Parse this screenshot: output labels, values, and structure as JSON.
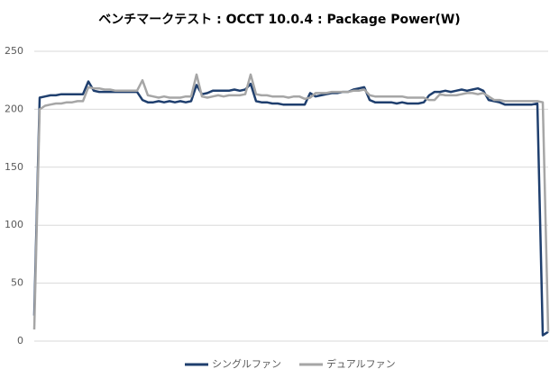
{
  "chart_data": {
    "type": "line",
    "title": "ベンチマークテスト : OCCT 10.0.4 : Package Power(W)",
    "ylim": [
      0,
      250
    ],
    "yticks": [
      0,
      50,
      100,
      150,
      200,
      250
    ],
    "grid": true,
    "legend": "bottom",
    "series": [
      {
        "name": "シングルファン",
        "color": "#1f3f6e",
        "values": [
          22,
          210,
          211,
          212,
          212,
          213,
          213,
          213,
          213,
          213,
          224,
          216,
          215,
          215,
          215,
          215,
          215,
          215,
          215,
          215,
          208,
          206,
          206,
          207,
          206,
          207,
          206,
          207,
          206,
          207,
          221,
          213,
          214,
          216,
          216,
          216,
          216,
          217,
          216,
          217,
          222,
          207,
          206,
          206,
          205,
          205,
          204,
          204,
          204,
          204,
          204,
          214,
          211,
          212,
          213,
          214,
          214,
          215,
          215,
          217,
          218,
          219,
          208,
          206,
          206,
          206,
          206,
          205,
          206,
          205,
          205,
          205,
          206,
          212,
          215,
          215,
          216,
          215,
          216,
          217,
          216,
          217,
          218,
          216,
          208,
          207,
          206,
          204,
          204,
          204,
          204,
          204,
          204,
          205,
          5,
          8
        ]
      },
      {
        "name": "デュアルファン",
        "color": "#a6a6a6",
        "values": [
          10,
          200,
          203,
          204,
          205,
          205,
          206,
          206,
          207,
          207,
          219,
          218,
          218,
          217,
          217,
          216,
          216,
          216,
          216,
          216,
          225,
          212,
          211,
          210,
          211,
          210,
          210,
          210,
          211,
          211,
          230,
          211,
          210,
          211,
          212,
          211,
          212,
          212,
          212,
          213,
          230,
          213,
          212,
          212,
          211,
          211,
          211,
          210,
          211,
          211,
          209,
          210,
          214,
          214,
          214,
          215,
          215,
          215,
          215,
          216,
          216,
          217,
          212,
          211,
          211,
          211,
          211,
          211,
          211,
          210,
          210,
          210,
          210,
          208,
          208,
          213,
          212,
          212,
          212,
          213,
          214,
          214,
          213,
          214,
          211,
          208,
          208,
          207,
          207,
          207,
          207,
          207,
          207,
          207,
          206,
          8
        ]
      }
    ]
  }
}
